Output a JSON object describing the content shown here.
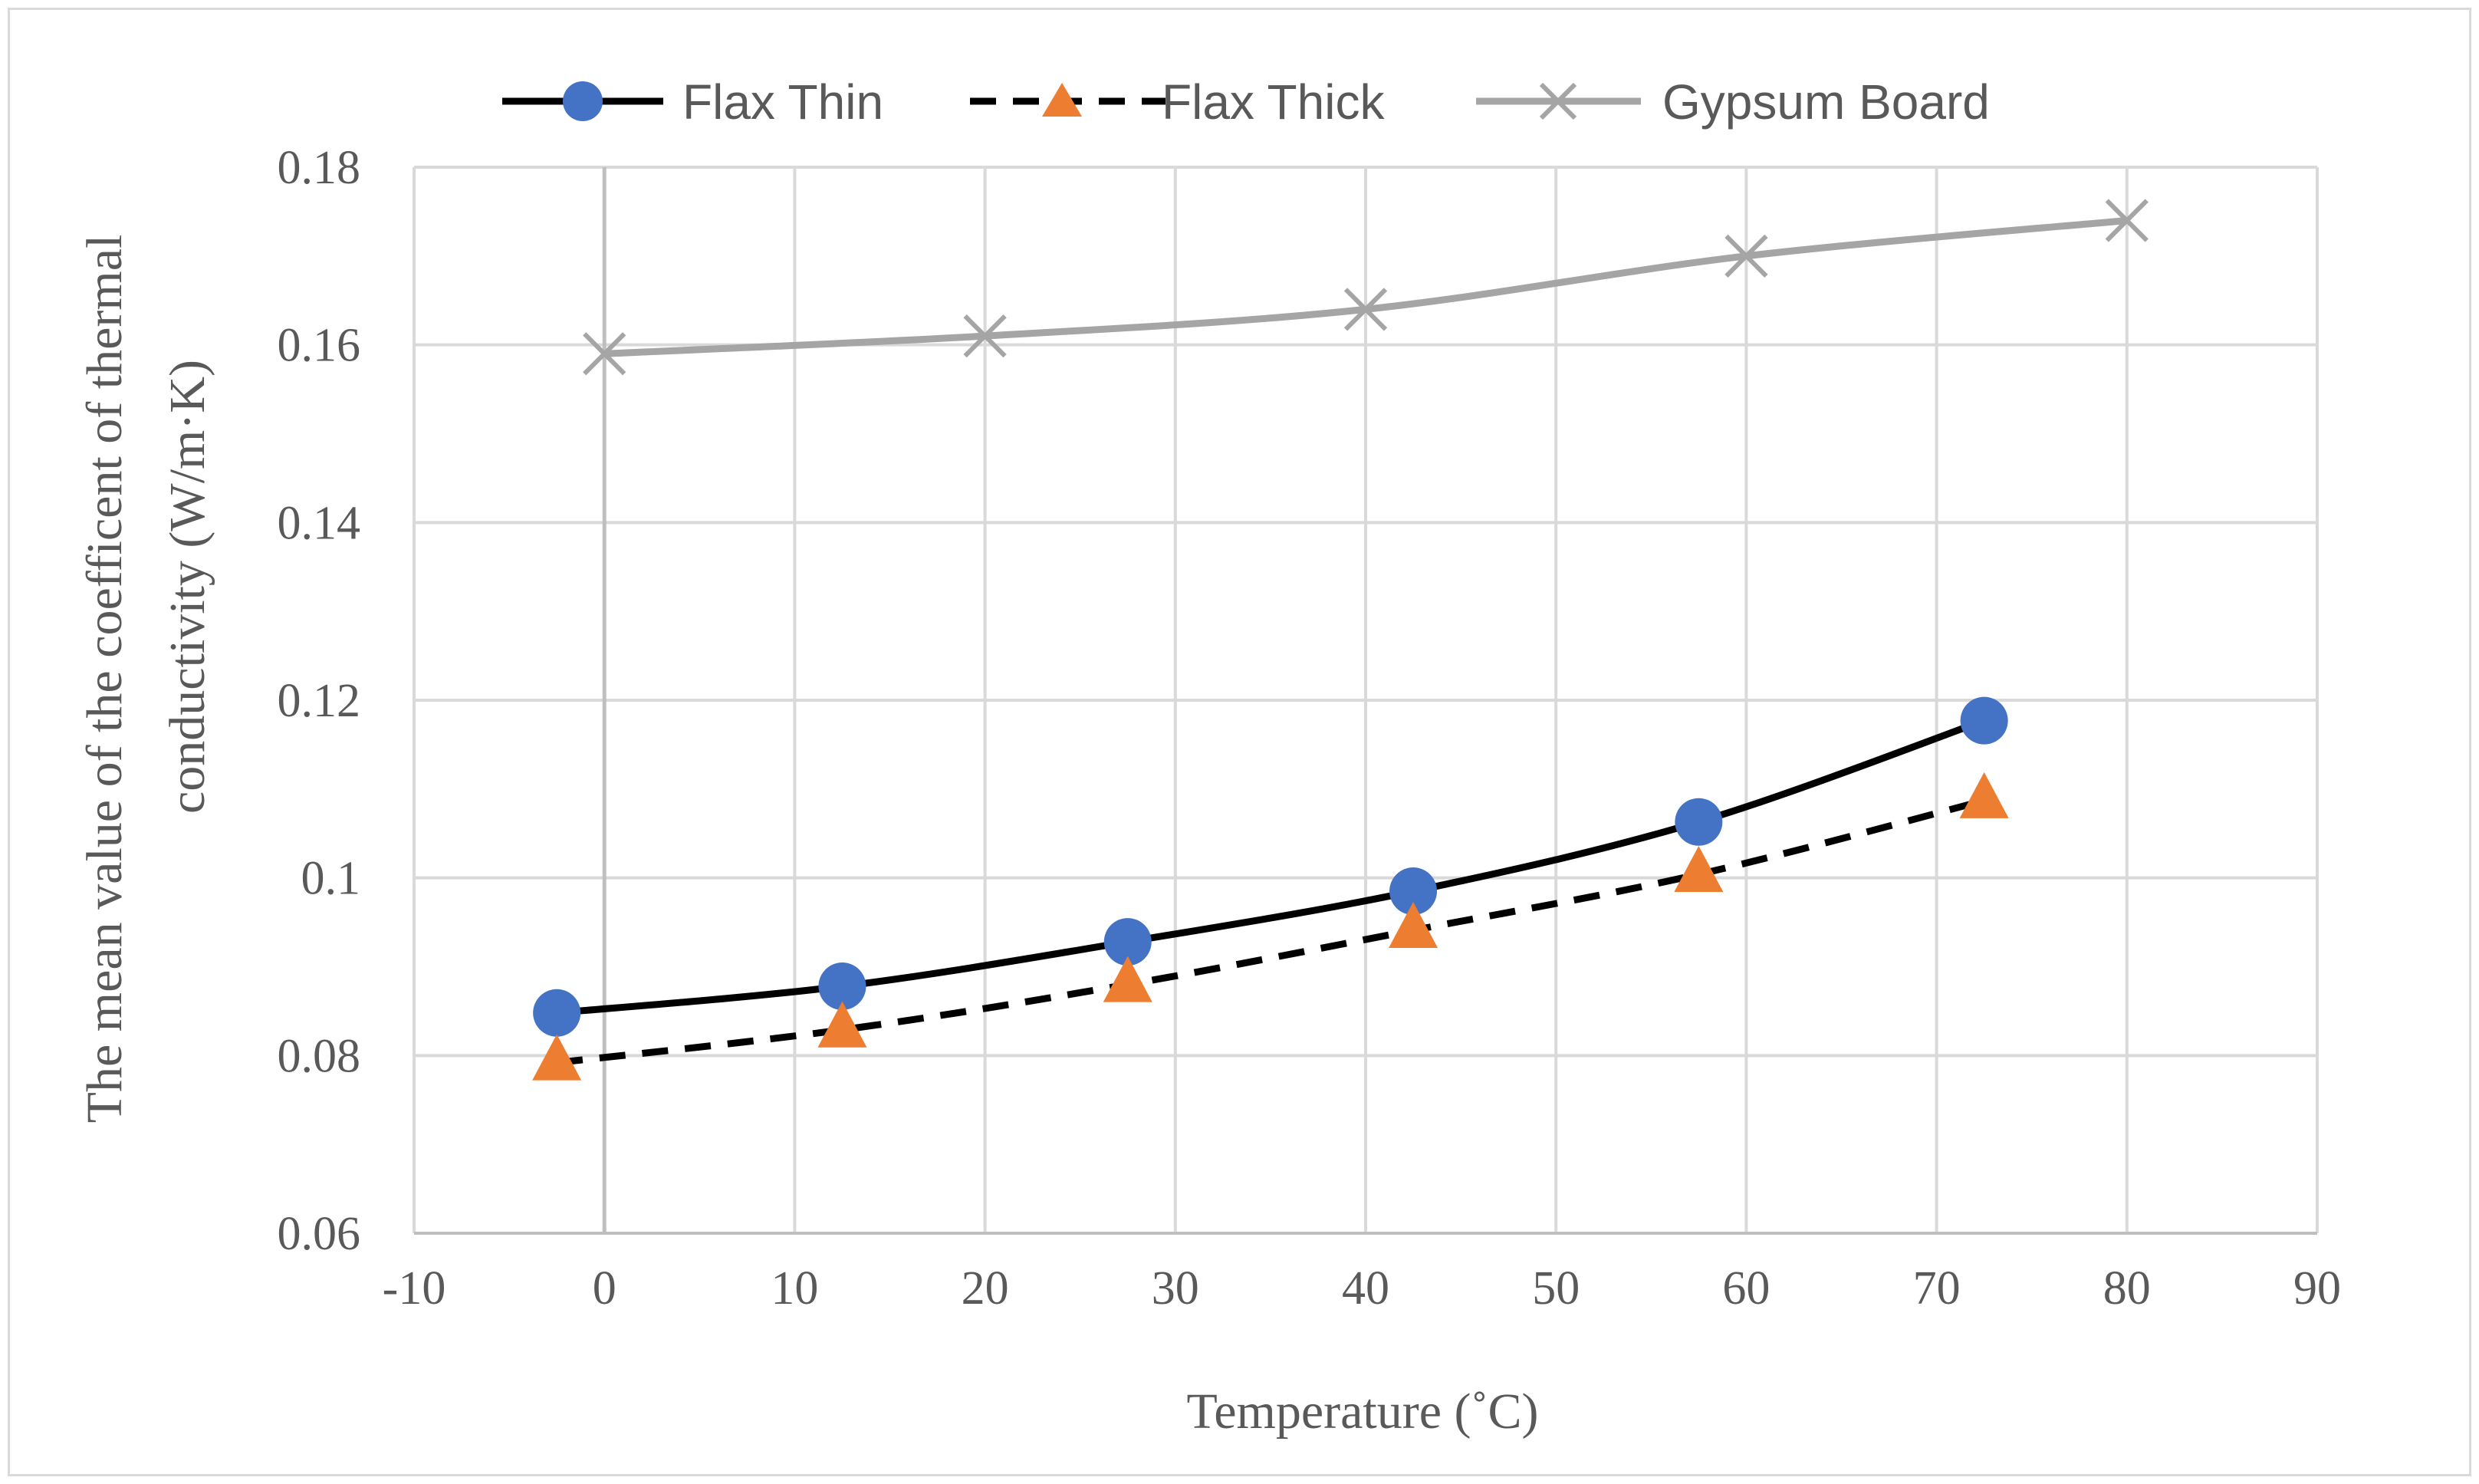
{
  "chart_data": {
    "type": "scatter",
    "title": "",
    "xlabel": "Temperature (˚C)",
    "ylabel_lines": [
      "The mean value of the coefficent of thermal",
      "conductivity (W/m·K)"
    ],
    "xlim": [
      -10,
      90
    ],
    "ylim": [
      0.06,
      0.18
    ],
    "x_ticks": [
      -10,
      0,
      10,
      20,
      30,
      40,
      50,
      60,
      70,
      80,
      90
    ],
    "x_tick_labels": [
      "-10",
      "0",
      "10",
      "20",
      "30",
      "40",
      "50",
      "60",
      "70",
      "80",
      "90"
    ],
    "y_ticks": [
      0.06,
      0.08,
      0.1,
      0.12,
      0.14,
      0.16,
      0.18
    ],
    "y_tick_labels": [
      "0.06",
      "0.08",
      "0.1",
      "0.12",
      "0.14",
      "0.16",
      "0.18"
    ],
    "grid": true,
    "legend_position": "top",
    "series": [
      {
        "name": "Flax Thin",
        "marker": "circle",
        "line_style": "solid",
        "line_color": "#000000",
        "marker_color": "#4472c4",
        "x": [
          -2.5,
          12.5,
          27.5,
          42.5,
          57.5,
          72.5
        ],
        "y": [
          0.0848,
          0.0878,
          0.0928,
          0.0985,
          0.1063,
          0.1177
        ]
      },
      {
        "name": "Flax Thick",
        "marker": "triangle",
        "line_style": "dashed",
        "line_color": "#000000",
        "marker_color": "#ed7d31",
        "x": [
          -2.5,
          12.5,
          27.5,
          42.5,
          57.5,
          72.5
        ],
        "y": [
          0.0792,
          0.0829,
          0.088,
          0.0941,
          0.1004,
          0.1087
        ]
      },
      {
        "name": "Gypsum Board",
        "marker": "cross",
        "line_style": "solid",
        "line_color": "#a5a5a5",
        "marker_color": "#a5a5a5",
        "x": [
          0,
          20,
          40,
          60,
          80
        ],
        "y": [
          0.159,
          0.161,
          0.164,
          0.17,
          0.174
        ]
      }
    ]
  }
}
